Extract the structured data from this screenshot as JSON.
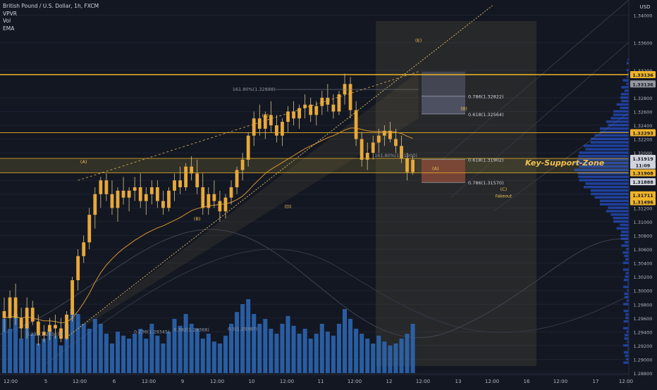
{
  "legend": {
    "symbol": "British Pound / U.S. Dollar, 1h, FXCM",
    "indicators": [
      "VPVR",
      "Vol",
      "EMA"
    ]
  },
  "colors": {
    "background": "#131722",
    "candle_body": "#e8a93a",
    "candle_wick": "#d9c48a",
    "volume": "#2e6ab8",
    "level_line": "#f0b429",
    "ema": "#d7952f",
    "text": "#d1d4dc",
    "label_text": "#f2c14e",
    "zone_fill": "#3a3520",
    "fib_upper": "#5b5d73",
    "fib_lower": "#8a4a3a"
  },
  "chart_data": {
    "type": "candlestick",
    "axis": {
      "currency_label": "USD",
      "y_ticks": [
        "1.34000",
        "1.33600",
        "1.33200",
        "1.32800",
        "1.32600",
        "1.32400",
        "1.32200",
        "1.32000",
        "1.31600",
        "1.31400",
        "1.31200",
        "1.31000",
        "1.30800",
        "1.30600",
        "1.30400",
        "1.30200",
        "1.30000",
        "1.29800",
        "1.29600",
        "1.29400",
        "1.29200",
        "1.29000",
        "1.28800"
      ],
      "ylim": [
        1.2878,
        1.3422
      ],
      "x_ticks": [
        "12:00",
        "5",
        "12:00",
        "6",
        "12:00",
        "9",
        "12:00",
        "10",
        "12:00",
        "11",
        "12:00",
        "12",
        "12:00",
        "13",
        "12:00",
        "16",
        "12:00",
        "17",
        "12:00"
      ]
    },
    "price_badges": [
      {
        "value": "1.33136",
        "price": 1.33136,
        "color": "#f0b429"
      },
      {
        "value": "1.33136",
        "price": 1.33,
        "color": "#9598a1"
      },
      {
        "value": "1.32293",
        "price": 1.32293,
        "color": "#f0b429"
      },
      {
        "value": "1.31919",
        "price": 1.31919,
        "color": "#d1d4dc"
      },
      {
        "value": "11:09",
        "price": 1.3182,
        "color": "#d1d4dc"
      },
      {
        "value": "1.31908",
        "price": 1.3171,
        "color": "#f0b429"
      },
      {
        "value": "1.31888",
        "price": 1.3158,
        "color": "#d1d4dc"
      },
      {
        "value": "1.31711",
        "price": 1.3139,
        "color": "#f0b429"
      },
      {
        "value": "1.31496",
        "price": 1.3129,
        "color": "#f0b429"
      }
    ],
    "levels": [
      {
        "name": "resistance",
        "price": 1.33136
      },
      {
        "name": "mid-level",
        "price": 1.32293
      },
      {
        "name": "support-top",
        "price": 1.31919
      },
      {
        "name": "support-bottom",
        "price": 1.3171
      }
    ],
    "zone_label": "Key-Support-Zone",
    "wave_labels": [
      {
        "text": "(A)",
        "bar": 14,
        "price": 1.3185
      },
      {
        "text": "(B)",
        "bar": 34,
        "price": 1.3102
      },
      {
        "text": "(C)",
        "bar": 46,
        "price": 1.3252
      },
      {
        "text": "(D)",
        "bar": 50,
        "price": 1.312
      },
      {
        "text": "(E)",
        "bar": 73,
        "price": 1.3361
      },
      {
        "text": "(A)",
        "bar": 76,
        "price": 1.3175
      },
      {
        "text": "(B)",
        "bar": 81,
        "price": 1.3262
      },
      {
        "text": "(C)",
        "bar": 88,
        "price": 1.3145
      }
    ],
    "fakeout_label": "Fakeout",
    "fib_annotations": [
      {
        "text": "161.80%(1.32888)",
        "bar": 44,
        "price": 1.329
      },
      {
        "text": "161.80%(1.31900)",
        "bar": 69,
        "price": 1.3194
      },
      {
        "text": "0.236(1.29307)",
        "bar": 7,
        "price": 1.2934
      },
      {
        "text": "0.236(1.29345)",
        "bar": 26,
        "price": 1.2938
      },
      {
        "text": "0.382(1.29368)",
        "bar": 33,
        "price": 1.2941
      },
      {
        "text": "0.5(1.29387)",
        "bar": 42,
        "price": 1.2942
      }
    ],
    "fib_box": [
      {
        "text": "0.786(1.32822)",
        "price": 1.32822
      },
      {
        "text": "0.618(1.32564)",
        "price": 1.32564
      },
      {
        "text": "0.618(1.31902)",
        "price": 1.31902
      },
      {
        "text": "0.786(1.31570)",
        "price": 1.3157
      }
    ],
    "candles": [
      [
        1.297,
        1.299,
        1.294,
        1.296
      ],
      [
        1.296,
        1.3,
        1.2945,
        1.299
      ],
      [
        1.299,
        1.301,
        1.295,
        1.296
      ],
      [
        1.296,
        1.2975,
        1.293,
        1.2945
      ],
      [
        1.2945,
        1.299,
        1.293,
        1.2975
      ],
      [
        1.2975,
        1.2985,
        1.295,
        1.2955
      ],
      [
        1.2955,
        1.2965,
        1.292,
        1.2935
      ],
      [
        1.2935,
        1.295,
        1.2925,
        1.294
      ],
      [
        1.294,
        1.296,
        1.2928,
        1.295
      ],
      [
        1.295,
        1.2965,
        1.293,
        1.2945
      ],
      [
        1.2945,
        1.296,
        1.2925,
        1.293
      ],
      [
        1.293,
        1.297,
        1.2928,
        1.2965
      ],
      [
        1.2965,
        1.302,
        1.2955,
        1.3015
      ],
      [
        1.3015,
        1.306,
        1.3,
        1.305
      ],
      [
        1.305,
        1.308,
        1.304,
        1.307
      ],
      [
        1.307,
        1.312,
        1.306,
        1.311
      ],
      [
        1.311,
        1.315,
        1.309,
        1.314
      ],
      [
        1.314,
        1.3165,
        1.312,
        1.316
      ],
      [
        1.316,
        1.317,
        1.313,
        1.314
      ],
      [
        1.314,
        1.316,
        1.311,
        1.312
      ],
      [
        1.312,
        1.315,
        1.31,
        1.3145
      ],
      [
        1.3145,
        1.3165,
        1.3125,
        1.3135
      ],
      [
        1.3135,
        1.315,
        1.3115,
        1.3145
      ],
      [
        1.3145,
        1.3165,
        1.313,
        1.315
      ],
      [
        1.315,
        1.317,
        1.312,
        1.313
      ],
      [
        1.313,
        1.315,
        1.311,
        1.314
      ],
      [
        1.314,
        1.316,
        1.3125,
        1.315
      ],
      [
        1.315,
        1.316,
        1.312,
        1.313
      ],
      [
        1.313,
        1.3145,
        1.311,
        1.312
      ],
      [
        1.312,
        1.315,
        1.3115,
        1.3145
      ],
      [
        1.3145,
        1.317,
        1.313,
        1.316
      ],
      [
        1.316,
        1.318,
        1.314,
        1.315
      ],
      [
        1.315,
        1.3185,
        1.3145,
        1.318
      ],
      [
        1.318,
        1.3195,
        1.316,
        1.317
      ],
      [
        1.317,
        1.319,
        1.314,
        1.315
      ],
      [
        1.315,
        1.317,
        1.311,
        1.312
      ],
      [
        1.312,
        1.315,
        1.311,
        1.314
      ],
      [
        1.314,
        1.316,
        1.312,
        1.313
      ],
      [
        1.313,
        1.3145,
        1.31,
        1.3115
      ],
      [
        1.3115,
        1.314,
        1.3105,
        1.3135
      ],
      [
        1.3135,
        1.316,
        1.3125,
        1.315
      ],
      [
        1.315,
        1.318,
        1.314,
        1.3175
      ],
      [
        1.3175,
        1.32,
        1.316,
        1.319
      ],
      [
        1.319,
        1.323,
        1.318,
        1.3225
      ],
      [
        1.3225,
        1.326,
        1.321,
        1.325
      ],
      [
        1.325,
        1.327,
        1.3225,
        1.3235
      ],
      [
        1.3235,
        1.326,
        1.322,
        1.3255
      ],
      [
        1.3255,
        1.3275,
        1.323,
        1.324
      ],
      [
        1.324,
        1.3255,
        1.3215,
        1.3225
      ],
      [
        1.3225,
        1.325,
        1.321,
        1.3245
      ],
      [
        1.3245,
        1.3268,
        1.323,
        1.326
      ],
      [
        1.326,
        1.3275,
        1.324,
        1.325
      ],
      [
        1.325,
        1.327,
        1.3235,
        1.3265
      ],
      [
        1.3265,
        1.3285,
        1.325,
        1.327
      ],
      [
        1.327,
        1.328,
        1.3245,
        1.3255
      ],
      [
        1.3255,
        1.3275,
        1.324,
        1.3268
      ],
      [
        1.3268,
        1.329,
        1.3255,
        1.328
      ],
      [
        1.328,
        1.33,
        1.326,
        1.327
      ],
      [
        1.327,
        1.3285,
        1.325,
        1.326
      ],
      [
        1.326,
        1.329,
        1.3255,
        1.3285
      ],
      [
        1.3285,
        1.3315,
        1.327,
        1.33
      ],
      [
        1.33,
        1.331,
        1.325,
        1.3262
      ],
      [
        1.3262,
        1.3275,
        1.321,
        1.322
      ],
      [
        1.322,
        1.323,
        1.318,
        1.319
      ],
      [
        1.319,
        1.3215,
        1.3175,
        1.32
      ],
      [
        1.32,
        1.3225,
        1.319,
        1.3215
      ],
      [
        1.3215,
        1.3235,
        1.32,
        1.3225
      ],
      [
        1.3225,
        1.324,
        1.321,
        1.3232
      ],
      [
        1.3232,
        1.3245,
        1.3215,
        1.322
      ],
      [
        1.322,
        1.3235,
        1.32,
        1.321
      ],
      [
        1.321,
        1.3225,
        1.3185,
        1.3192
      ],
      [
        1.3192,
        1.32,
        1.316,
        1.3172
      ],
      [
        1.3172,
        1.3195,
        1.3168,
        1.319
      ]
    ],
    "volume": [
      0.55,
      0.45,
      0.6,
      0.35,
      0.5,
      0.4,
      0.3,
      0.35,
      0.45,
      0.38,
      0.28,
      0.5,
      0.65,
      0.6,
      0.5,
      0.45,
      0.55,
      0.5,
      0.4,
      0.3,
      0.42,
      0.38,
      0.35,
      0.4,
      0.45,
      0.35,
      0.5,
      0.38,
      0.3,
      0.42,
      0.55,
      0.48,
      0.6,
      0.5,
      0.45,
      0.35,
      0.4,
      0.32,
      0.3,
      0.38,
      0.5,
      0.62,
      0.7,
      0.75,
      0.6,
      0.5,
      0.55,
      0.45,
      0.4,
      0.5,
      0.58,
      0.48,
      0.4,
      0.45,
      0.35,
      0.4,
      0.5,
      0.42,
      0.38,
      0.5,
      0.65,
      0.55,
      0.45,
      0.4,
      0.35,
      0.3,
      0.38,
      0.32,
      0.28,
      0.3,
      0.35,
      0.4,
      0.5
    ],
    "ema": [
      1.296,
      1.2962,
      1.2962,
      1.296,
      1.2962,
      1.296,
      1.2958,
      1.2956,
      1.2956,
      1.2955,
      1.2953,
      1.2954,
      1.296,
      1.297,
      1.2982,
      1.2996,
      1.3012,
      1.3026,
      1.3037,
      1.3046,
      1.3054,
      1.3061,
      1.3067,
      1.3073,
      1.3078,
      1.3083,
      1.3087,
      1.3091,
      1.3094,
      1.3098,
      1.3102,
      1.3106,
      1.3111,
      1.3116,
      1.3119,
      1.3121,
      1.3123,
      1.3124,
      1.3125,
      1.3126,
      1.3128,
      1.3132,
      1.3137,
      1.3145,
      1.3154,
      1.3162,
      1.317,
      1.3176,
      1.3181,
      1.3186,
      1.3191,
      1.3196,
      1.3201,
      1.3206,
      1.321,
      1.3214,
      1.3218,
      1.3222,
      1.3225,
      1.3229,
      1.3233,
      1.3236,
      1.3236,
      1.3234,
      1.3232,
      1.3231,
      1.3231,
      1.3231,
      1.3231,
      1.323,
      1.3228,
      1.3224,
      1.3221
    ]
  }
}
